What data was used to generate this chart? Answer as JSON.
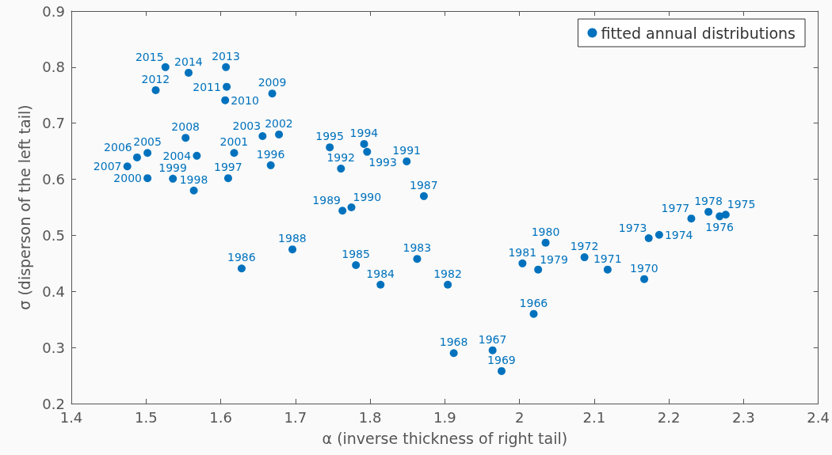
{
  "chart_data": {
    "type": "scatter",
    "xlabel": "α (inverse thickness of right tail)",
    "ylabel": "σ (disperson of the left tail)",
    "xlim": [
      1.4,
      2.4
    ],
    "xticks": [
      1.4,
      1.5,
      1.6,
      1.7,
      1.8,
      1.9,
      2,
      2.1,
      2.2,
      2.3,
      2.4
    ],
    "ylim": [
      0.2,
      0.9
    ],
    "yticks": [
      0.2,
      0.3,
      0.4,
      0.5,
      0.6,
      0.7,
      0.8,
      0.9
    ],
    "grid": false,
    "legend": "top right",
    "marker": "circle",
    "series": [
      {
        "name": "fitted annual distributions",
        "color": "#0072bd",
        "x": [
          2.019,
          1.964,
          1.912,
          1.976,
          2.167,
          2.118,
          2.087,
          2.173,
          2.187,
          2.276,
          2.268,
          2.23,
          2.253,
          2.025,
          2.035,
          2.004,
          1.904,
          1.863,
          1.814,
          1.781,
          1.628,
          1.872,
          1.696,
          1.763,
          1.775,
          1.849,
          1.761,
          1.796,
          1.792,
          1.746,
          1.667,
          1.61,
          1.564,
          1.536,
          1.502,
          1.618,
          1.678,
          1.656,
          1.568,
          1.502,
          1.488,
          1.475,
          1.553,
          1.669,
          1.606,
          1.608,
          1.513,
          1.607,
          1.557,
          1.526
        ],
        "values": [
          0.36,
          0.295,
          0.29,
          0.258,
          0.422,
          0.439,
          0.461,
          0.495,
          0.501,
          0.537,
          0.534,
          0.53,
          0.542,
          0.439,
          0.487,
          0.45,
          0.412,
          0.458,
          0.412,
          0.447,
          0.441,
          0.57,
          0.475,
          0.544,
          0.55,
          0.632,
          0.619,
          0.649,
          0.663,
          0.657,
          0.625,
          0.602,
          0.58,
          0.601,
          0.602,
          0.647,
          0.68,
          0.677,
          0.642,
          0.647,
          0.639,
          0.623,
          0.674,
          0.753,
          0.741,
          0.765,
          0.759,
          0.8,
          0.79,
          0.8
        ]
      }
    ],
    "annotations": [
      {
        "text": "1966",
        "x": 2.019,
        "y": 0.36
      },
      {
        "text": "1967",
        "x": 1.964,
        "y": 0.295
      },
      {
        "text": "1968",
        "x": 1.912,
        "y": 0.29
      },
      {
        "text": "1969",
        "x": 1.976,
        "y": 0.258
      },
      {
        "text": "1970",
        "x": 2.167,
        "y": 0.422
      },
      {
        "text": "1971",
        "x": 2.118,
        "y": 0.439
      },
      {
        "text": "1972",
        "x": 2.087,
        "y": 0.461
      },
      {
        "text": "1973",
        "x": 2.173,
        "y": 0.495
      },
      {
        "text": "1974",
        "x": 2.187,
        "y": 0.501
      },
      {
        "text": "1975",
        "x": 2.276,
        "y": 0.537
      },
      {
        "text": "1976",
        "x": 2.268,
        "y": 0.534
      },
      {
        "text": "1977",
        "x": 2.23,
        "y": 0.53
      },
      {
        "text": "1978",
        "x": 2.253,
        "y": 0.542
      },
      {
        "text": "1979",
        "x": 2.025,
        "y": 0.439
      },
      {
        "text": "1980",
        "x": 2.035,
        "y": 0.487
      },
      {
        "text": "1981",
        "x": 2.004,
        "y": 0.45
      },
      {
        "text": "1982",
        "x": 1.904,
        "y": 0.412
      },
      {
        "text": "1983",
        "x": 1.863,
        "y": 0.458
      },
      {
        "text": "1984",
        "x": 1.814,
        "y": 0.412
      },
      {
        "text": "1985",
        "x": 1.781,
        "y": 0.447
      },
      {
        "text": "1986",
        "x": 1.628,
        "y": 0.441
      },
      {
        "text": "1987",
        "x": 1.872,
        "y": 0.57
      },
      {
        "text": "1988",
        "x": 1.696,
        "y": 0.475
      },
      {
        "text": "1989",
        "x": 1.763,
        "y": 0.544
      },
      {
        "text": "1990",
        "x": 1.775,
        "y": 0.55
      },
      {
        "text": "1991",
        "x": 1.849,
        "y": 0.632
      },
      {
        "text": "1992",
        "x": 1.761,
        "y": 0.619
      },
      {
        "text": "1993",
        "x": 1.796,
        "y": 0.649
      },
      {
        "text": "1994",
        "x": 1.792,
        "y": 0.663
      },
      {
        "text": "1995",
        "x": 1.746,
        "y": 0.657
      },
      {
        "text": "1996",
        "x": 1.667,
        "y": 0.625
      },
      {
        "text": "1997",
        "x": 1.61,
        "y": 0.602
      },
      {
        "text": "1998",
        "x": 1.564,
        "y": 0.58
      },
      {
        "text": "1999",
        "x": 1.536,
        "y": 0.601
      },
      {
        "text": "2000",
        "x": 1.502,
        "y": 0.602
      },
      {
        "text": "2001",
        "x": 1.618,
        "y": 0.647
      },
      {
        "text": "2002",
        "x": 1.678,
        "y": 0.68
      },
      {
        "text": "2003",
        "x": 1.656,
        "y": 0.677
      },
      {
        "text": "2004",
        "x": 1.568,
        "y": 0.642
      },
      {
        "text": "2005",
        "x": 1.502,
        "y": 0.647
      },
      {
        "text": "2006",
        "x": 1.488,
        "y": 0.639
      },
      {
        "text": "2007",
        "x": 1.475,
        "y": 0.623
      },
      {
        "text": "2008",
        "x": 1.553,
        "y": 0.674
      },
      {
        "text": "2009",
        "x": 1.669,
        "y": 0.753
      },
      {
        "text": "2010",
        "x": 1.606,
        "y": 0.741
      },
      {
        "text": "2011",
        "x": 1.608,
        "y": 0.765
      },
      {
        "text": "2012",
        "x": 1.513,
        "y": 0.759
      },
      {
        "text": "2013",
        "x": 1.607,
        "y": 0.8
      },
      {
        "text": "2014",
        "x": 1.557,
        "y": 0.79
      },
      {
        "text": "2015",
        "x": 1.526,
        "y": 0.8
      }
    ]
  }
}
